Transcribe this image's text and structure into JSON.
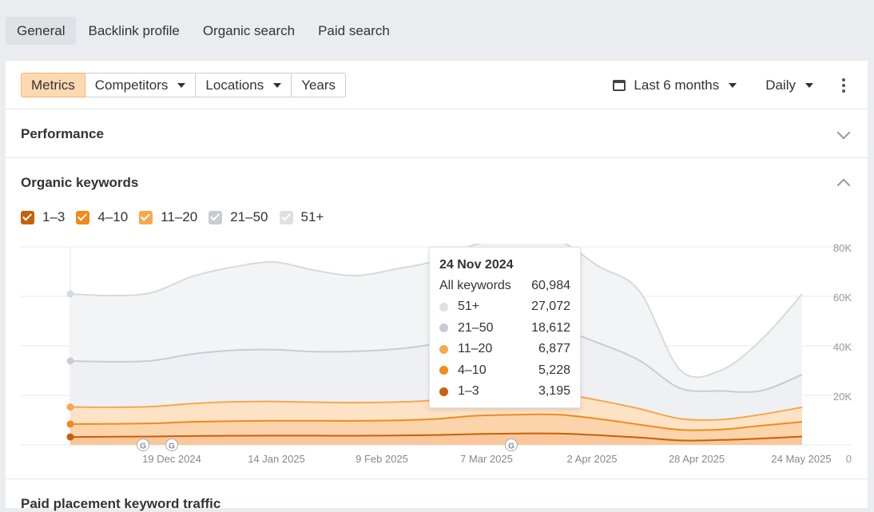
{
  "tabs": [
    {
      "label": "General",
      "active": true
    },
    {
      "label": "Backlink profile",
      "active": false
    },
    {
      "label": "Organic search",
      "active": false
    },
    {
      "label": "Paid search",
      "active": false
    }
  ],
  "toolbar": {
    "segments": [
      "Metrics",
      "Competitors",
      "Locations",
      "Years"
    ],
    "active_segment": "Metrics",
    "date_range": "Last 6 months",
    "granularity": "Daily"
  },
  "sections": {
    "performance": "Performance",
    "organic_keywords": "Organic keywords",
    "bottom": "Paid placement keyword traffic"
  },
  "legend": [
    {
      "label": "1–3",
      "color": "#c7600b",
      "checked": true
    },
    {
      "label": "4–10",
      "color": "#f18a1b",
      "checked": true
    },
    {
      "label": "11–20",
      "color": "#f5a84c",
      "checked": true
    },
    {
      "label": "21–50",
      "color": "#c8ccd3",
      "checked": true
    },
    {
      "label": "51+",
      "color": "#dde0e5",
      "checked": true
    }
  ],
  "tooltip": {
    "date": "24 Nov 2024",
    "total_label": "All keywords",
    "total_value": "60,984",
    "rows": [
      {
        "label": "51+",
        "value": "27,072",
        "color": "#dde0e5"
      },
      {
        "label": "21–50",
        "value": "18,612",
        "color": "#c8ccd3"
      },
      {
        "label": "11–20",
        "value": "6,877",
        "color": "#f5a84c"
      },
      {
        "label": "4–10",
        "value": "5,228",
        "color": "#f18a1b"
      },
      {
        "label": "1–3",
        "value": "3,195",
        "color": "#c7600b"
      }
    ]
  },
  "chart_data": {
    "type": "area",
    "stacked": true,
    "x_ticks": [
      "19 Dec 2024",
      "14 Jan 2025",
      "9 Feb 2025",
      "7 Mar 2025",
      "2 Apr 2025",
      "28 Apr 2025",
      "24 May 2025"
    ],
    "y_ticks": [
      "0",
      "20K",
      "40K",
      "60K",
      "80K"
    ],
    "ylim": [
      0,
      80000
    ],
    "annotations": [
      "G",
      "G",
      "G"
    ],
    "x": [
      "24 Nov 2024",
      "6 Dec 2024",
      "19 Dec 2024",
      "1 Jan 2025",
      "14 Jan 2025",
      "27 Jan 2025",
      "9 Feb 2025",
      "22 Feb 2025",
      "7 Mar 2025",
      "20 Mar 2025",
      "2 Apr 2025",
      "9 Apr 2025",
      "15 Apr 2025",
      "28 Apr 2025",
      "4 May 2025",
      "10 May 2025",
      "17 May 2025",
      "24 May 2025",
      "1 Jun 2025"
    ],
    "series": [
      {
        "name": "1–3",
        "values": [
          3195,
          3300,
          3400,
          3600,
          3700,
          3750,
          3750,
          3700,
          3800,
          4000,
          4400,
          4600,
          4600,
          3900,
          3000,
          1800,
          2000,
          2600,
          3400
        ],
        "color": "#c7600b"
      },
      {
        "name": "4–10",
        "values": [
          5228,
          5200,
          5300,
          5700,
          5900,
          6000,
          6000,
          6000,
          6100,
          6500,
          7400,
          7600,
          7600,
          6600,
          5200,
          4300,
          4200,
          5200,
          5900
        ],
        "color": "#f18a1b"
      },
      {
        "name": "11–20",
        "values": [
          6877,
          6700,
          6800,
          7400,
          7800,
          7800,
          7500,
          7400,
          7400,
          7600,
          8300,
          8500,
          8500,
          7500,
          6400,
          4500,
          4000,
          4500,
          5900
        ],
        "color": "#f5a84c"
      },
      {
        "name": "21–50",
        "values": [
          18612,
          18400,
          18500,
          20000,
          20800,
          20900,
          20400,
          20700,
          21400,
          22800,
          24500,
          25600,
          25800,
          23100,
          19500,
          12300,
          11600,
          9600,
          13200
        ],
        "color": "#c8ccd3"
      },
      {
        "name": "51+",
        "values": [
          27072,
          26700,
          27500,
          31300,
          33600,
          35400,
          32900,
          30600,
          32300,
          33500,
          36500,
          36100,
          36000,
          31000,
          28000,
          7400,
          8300,
          20600,
          32500
        ],
        "color": "#dde0e5"
      }
    ]
  }
}
